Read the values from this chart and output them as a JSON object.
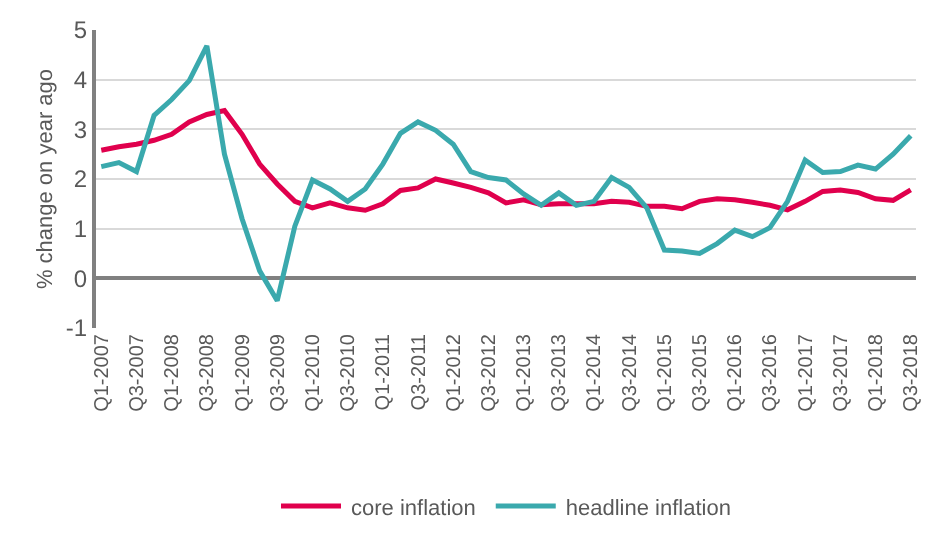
{
  "chart_data": {
    "type": "line",
    "ylabel": "% change on year ago",
    "categories": [
      "Q1-2007",
      null,
      "Q3-2007",
      null,
      "Q1-2008",
      null,
      "Q3-2008",
      null,
      "Q1-2009",
      null,
      "Q3-2009",
      null,
      "Q1-2010",
      null,
      "Q3-2010",
      null,
      "Q1-2011",
      null,
      "Q3-2011",
      null,
      "Q1-2012",
      null,
      "Q3-2012",
      null,
      "Q1-2013",
      null,
      "Q3-2013",
      null,
      "Q1-2014",
      null,
      "Q3-2014",
      null,
      "Q1-2015",
      null,
      "Q3-2015",
      null,
      "Q1-2016",
      null,
      "Q3-2016",
      null,
      "Q1-2017",
      null,
      "Q3-2017",
      null,
      "Q1-2018",
      null,
      "Q3-2018"
    ],
    "series": [
      {
        "name": "core inflation",
        "color": "#e0004d",
        "values": [
          2.58,
          2.65,
          2.7,
          2.78,
          2.9,
          3.15,
          3.3,
          3.38,
          2.9,
          2.3,
          1.9,
          1.55,
          1.42,
          1.52,
          1.42,
          1.37,
          1.5,
          1.77,
          1.82,
          2.0,
          1.92,
          1.83,
          1.72,
          1.52,
          1.58,
          1.48,
          1.5,
          1.5,
          1.5,
          1.55,
          1.53,
          1.45,
          1.45,
          1.4,
          1.55,
          1.6,
          1.58,
          1.53,
          1.47,
          1.38,
          1.55,
          1.75,
          1.78,
          1.73,
          1.6,
          1.57,
          1.78
        ]
      },
      {
        "name": "headline inflation",
        "color": "#3aa9ad",
        "values": [
          2.25,
          2.33,
          2.15,
          3.28,
          3.6,
          3.98,
          4.68,
          2.5,
          1.2,
          0.15,
          -0.45,
          1.05,
          1.98,
          1.8,
          1.55,
          1.8,
          2.3,
          2.92,
          3.15,
          2.98,
          2.7,
          2.15,
          2.03,
          1.98,
          1.7,
          1.47,
          1.72,
          1.47,
          1.55,
          2.03,
          1.83,
          1.42,
          0.57,
          0.55,
          0.5,
          0.7,
          0.97,
          0.84,
          1.02,
          1.55,
          2.38,
          2.13,
          2.15,
          2.28,
          2.2,
          2.5,
          2.87
        ]
      }
    ],
    "ylim": [
      -1,
      5
    ],
    "yticks": [
      -1,
      0,
      1,
      2,
      3,
      4,
      5
    ],
    "grid": "y",
    "legend": "bottom",
    "marker": "none",
    "line_style": "solid"
  }
}
